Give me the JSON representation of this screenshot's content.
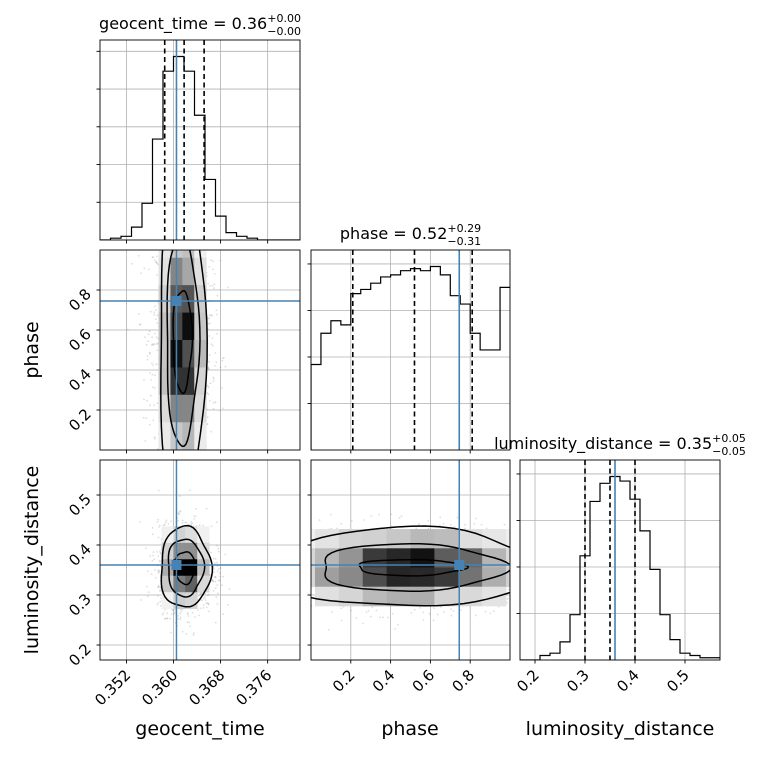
{
  "chart_data": {
    "type": "corner",
    "parameters": [
      {
        "name": "geocent_time",
        "label": "geocent_time",
        "median": "0.36",
        "plus": "+0.00",
        "minus": "−0.00",
        "range": [
          0.3475,
          0.3815
        ],
        "ticks": [
          0.352,
          0.36,
          0.368,
          0.376
        ],
        "tick_labels": [
          "0.352",
          "0.360",
          "0.368",
          "0.376"
        ],
        "quantiles": [
          0.3585,
          0.3618,
          0.3652
        ],
        "truth": 0.3605
      },
      {
        "name": "phase",
        "label": "phase",
        "median": "0.52",
        "plus": "+0.29",
        "minus": "−0.31",
        "range": [
          0.0,
          1.0
        ],
        "ticks": [
          0.2,
          0.4,
          0.6,
          0.8
        ],
        "tick_labels": [
          "0.2",
          "0.4",
          "0.6",
          "0.8"
        ],
        "quantiles": [
          0.21,
          0.52,
          0.81
        ],
        "truth": 0.745
      },
      {
        "name": "luminosity_distance",
        "label": "luminosity_distance",
        "median": "0.35",
        "plus": "+0.05",
        "minus": "−0.05",
        "range": [
          0.17,
          0.57
        ],
        "ticks": [
          0.2,
          0.3,
          0.4,
          0.5
        ],
        "tick_labels": [
          "0.2",
          "0.3",
          "0.4",
          "0.5"
        ],
        "quantiles": [
          0.3,
          0.35,
          0.4
        ],
        "truth": 0.36
      }
    ],
    "histograms": {
      "geocent_time": {
        "edges": [
          0.3475,
          0.3832
        ],
        "counts": [
          0,
          1,
          2,
          7,
          20,
          55,
          92,
          100,
          92,
          68,
          33,
          13,
          4,
          2,
          1,
          0,
          0,
          0,
          0,
          0
        ]
      },
      "phase": {
        "edges": [
          0.0,
          1.0
        ],
        "counts": [
          41,
          56,
          62,
          60,
          75,
          77,
          80,
          83,
          84,
          86,
          87,
          86,
          88,
          84,
          74,
          70,
          56,
          48,
          48,
          78
        ]
      },
      "luminosity_distance": {
        "edges": [
          0.17,
          0.57
        ],
        "counts": [
          0,
          0,
          2,
          3,
          8,
          20,
          46,
          70,
          78,
          81,
          79,
          71,
          57,
          40,
          20,
          9,
          3,
          2,
          1,
          1
        ]
      }
    },
    "grid": true,
    "truth_color": "#4682b4"
  }
}
